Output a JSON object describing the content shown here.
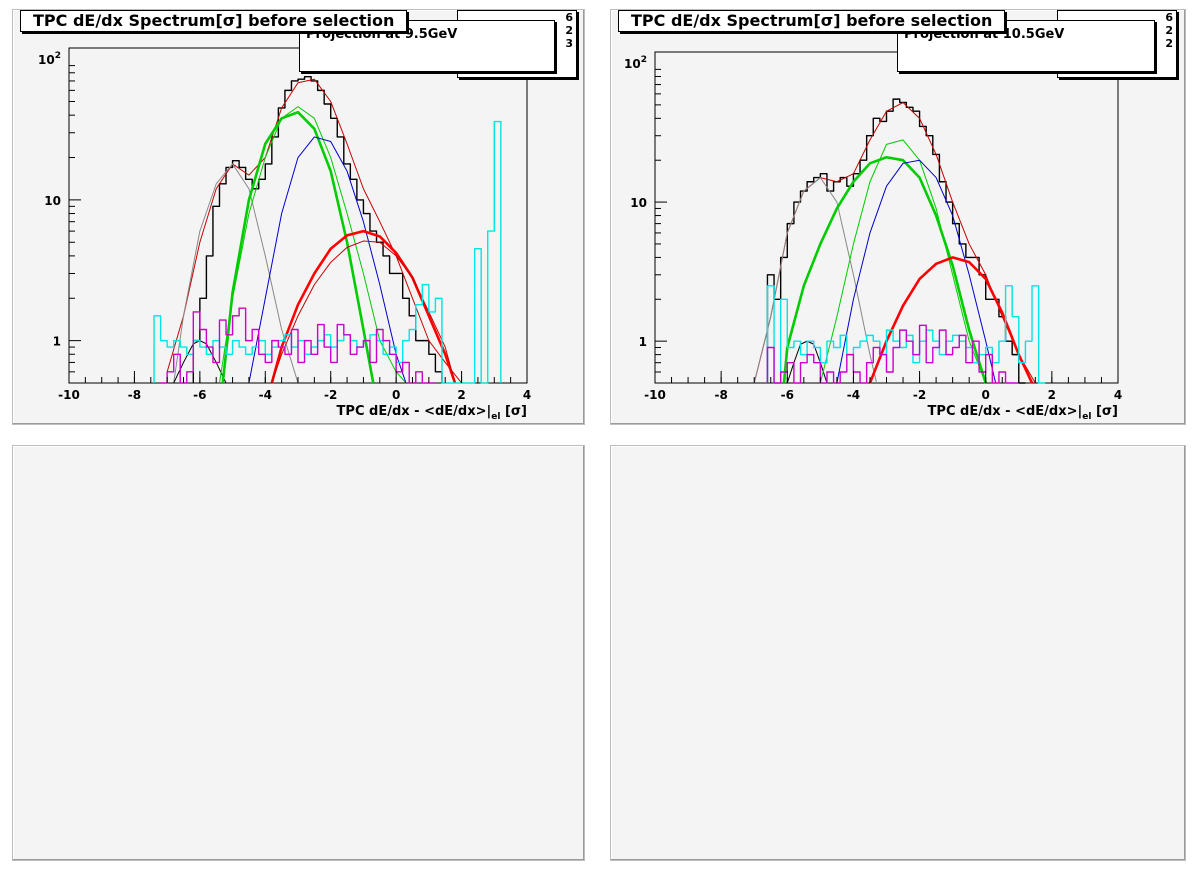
{
  "panels": [
    {
      "title": "TPC dE/dx Spectrum[σ] before selection",
      "projection": "Projection at 9.5GeV",
      "stats": [
        "6",
        "2",
        "3"
      ]
    },
    {
      "title": "TPC dE/dx Spectrum[σ] before selection",
      "projection": "Projection at 10.5GeV",
      "stats": [
        "6",
        "2",
        "2"
      ]
    }
  ],
  "chart_data": [
    {
      "type": "line",
      "title": "TPC dE/dx Spectrum[σ] before selection",
      "subtitle": "Projection at 9.5GeV",
      "xlabel": "TPC dE/dx - <dE/dx>|el [σ]",
      "xticks": [
        "-10",
        "-8",
        "-6",
        "-4",
        "-2",
        "0",
        "2",
        "4"
      ],
      "yticks": [
        "1",
        "10",
        "10^2"
      ],
      "xlim": [
        -10,
        4
      ],
      "ylim": [
        0.5,
        120
      ],
      "yscale": "log",
      "colors": {
        "data": "#000000",
        "total_fit": "#c80000",
        "electron": "#ff0000",
        "pion": "#00cc00",
        "kaon": "#0000cc",
        "proton": "#888888",
        "other": "#00e5e5",
        "residual": "#cc00cc"
      },
      "series": [
        {
          "color": "#000000",
          "style": "step",
          "x": [
            -6.2,
            -6,
            -5.8,
            -5.6,
            -5.4,
            -5.2,
            -5,
            -4.8,
            -4.6,
            -4.4,
            -4.2,
            -4,
            -3.8,
            -3.6,
            -3.4,
            -3.2,
            -3,
            -2.8,
            -2.6,
            -2.4,
            -2.2,
            -2,
            -1.8,
            -1.6,
            -1.4,
            -1.2,
            -1,
            -0.8,
            -0.6,
            -0.4,
            -0.2,
            0,
            0.2,
            0.4,
            0.6,
            0.8,
            1,
            1.2
          ],
          "y": [
            1,
            2,
            4,
            9,
            13,
            17,
            19,
            17,
            14,
            12,
            14,
            18,
            28,
            45,
            60,
            70,
            72,
            75,
            70,
            60,
            48,
            38,
            28,
            18,
            14,
            10,
            8,
            6,
            5,
            4,
            3,
            3,
            2,
            1.5,
            1,
            1,
            0.8,
            0.6
          ]
        },
        {
          "color": "#c80000",
          "style": "smooth",
          "x": [
            -7,
            -6.5,
            -6,
            -5.5,
            -5,
            -4.5,
            -4,
            -3.5,
            -3,
            -2.5,
            -2,
            -1.5,
            -1,
            -0.5,
            0,
            0.5,
            1,
            1.5,
            2
          ],
          "y": [
            0.6,
            1.5,
            5,
            12,
            18,
            15,
            20,
            45,
            68,
            72,
            50,
            25,
            12,
            7,
            4,
            2,
            1,
            0.7,
            0.5
          ]
        },
        {
          "color": "#888888",
          "style": "smooth",
          "x": [
            -6.8,
            -6.5,
            -6,
            -5.5,
            -5,
            -4.5,
            -4,
            -3.5,
            -3
          ],
          "y": [
            0.5,
            1.5,
            6,
            13,
            18,
            12,
            4,
            1.2,
            0.5
          ]
        },
        {
          "color": "#000000",
          "style": "smooth",
          "x": [
            -6.8,
            -6.5,
            -6.2,
            -6,
            -5.8,
            -5.5,
            -5.2
          ],
          "y": [
            0.5,
            0.7,
            0.95,
            1,
            0.95,
            0.7,
            0.5
          ]
        },
        {
          "color": "#00cc00",
          "style": "smooth",
          "x": [
            -5.4,
            -5,
            -4.5,
            -4,
            -3.5,
            -3,
            -2.5,
            -2,
            -1.5,
            -1,
            -0.5,
            0,
            0.3
          ],
          "y": [
            0.5,
            2,
            8,
            20,
            38,
            46,
            38,
            20,
            8,
            3,
            1,
            0.6,
            0.5
          ]
        },
        {
          "color": "#00cc00",
          "style": "thick",
          "x": [
            -5.3,
            -5,
            -4.5,
            -4,
            -3.5,
            -3,
            -2.5,
            -2,
            -1.5,
            -1,
            -0.7
          ],
          "y": [
            0.5,
            2.2,
            10,
            25,
            38,
            42,
            32,
            16,
            5,
            1.2,
            0.5
          ]
        },
        {
          "color": "#0000cc",
          "style": "smooth",
          "x": [
            -4.5,
            -4,
            -3.5,
            -3,
            -2.5,
            -2,
            -1.5,
            -1,
            -0.5,
            0,
            0.3
          ],
          "y": [
            0.5,
            2,
            8,
            20,
            28,
            26,
            16,
            7,
            2.5,
            0.8,
            0.5
          ]
        },
        {
          "color": "#ff0000",
          "style": "thick",
          "x": [
            -3.8,
            -3.5,
            -3,
            -2.5,
            -2,
            -1.5,
            -1,
            -0.5,
            0,
            0.5,
            1,
            1.5,
            1.8
          ],
          "y": [
            0.5,
            0.9,
            1.8,
            3,
            4.5,
            5.6,
            6,
            5.5,
            4.2,
            2.8,
            1.5,
            0.8,
            0.5
          ]
        },
        {
          "color": "#c80000",
          "style": "smooth",
          "x": [
            -3.8,
            -3.5,
            -3,
            -2.5,
            -2,
            -1.5,
            -1,
            -0.5,
            0,
            0.5,
            1,
            1.5,
            1.8
          ],
          "y": [
            0.5,
            0.8,
            1.5,
            2.5,
            3.6,
            4.6,
            5.1,
            5,
            4,
            2.8,
            1.6,
            0.9,
            0.5
          ]
        },
        {
          "color": "#00e5e5",
          "style": "step",
          "x": [
            -7.4,
            -7.2,
            -7,
            -6.8,
            -6.6,
            -6.4,
            -6.2,
            -6,
            -5.8,
            -5.6,
            -5.4,
            -5.2,
            -5,
            -4.8,
            -4.6,
            -4.4,
            -4.2,
            -4,
            -3.8,
            -3.6,
            -3.4,
            -3.2,
            -3,
            -2.8,
            -2.6,
            -2.4,
            -2.2,
            -2,
            -1.8,
            -1.6,
            -1.4,
            -1.2,
            -1,
            -0.8,
            -0.6,
            -0.4,
            -0.2,
            0,
            0.2,
            0.4,
            0.6,
            0.8,
            1,
            1.2,
            1.4,
            1.6,
            1.8,
            2,
            2.2,
            2.4,
            2.6,
            2.8,
            3
          ],
          "y": [
            1.5,
            1,
            0.9,
            1,
            0.9,
            0.8,
            1,
            0.9,
            0.8,
            1,
            0.9,
            0.8,
            1,
            0.9,
            0.8,
            0.9,
            1,
            0.8,
            0.9,
            1,
            1.1,
            0.9,
            1,
            0.8,
            0.9,
            1,
            1.1,
            0.9,
            1,
            1.1,
            1,
            0.9,
            1,
            1.1,
            1,
            0.8,
            0.9,
            0.7,
            1,
            1.2,
            1.8,
            2.5,
            1.6,
            2,
            0.5,
            0.5,
            0.5,
            0.5,
            0.5,
            4.5,
            0.5,
            6,
            36
          ]
        },
        {
          "color": "#cc00cc",
          "style": "step",
          "x": [
            -7.2,
            -7,
            -6.8,
            -6.6,
            -6.4,
            -6.2,
            -6,
            -5.8,
            -5.6,
            -5.4,
            -5.2,
            -5,
            -4.8,
            -4.6,
            -4.4,
            -4.2,
            -4,
            -3.8,
            -3.6,
            -3.4,
            -3.2,
            -3,
            -2.8,
            -2.6,
            -2.4,
            -2.2,
            -2,
            -1.8,
            -1.6,
            -1.4,
            -1.2,
            -1,
            -0.8,
            -0.6,
            -0.4,
            -0.2,
            0,
            0.2,
            0.4,
            0.6,
            0.8,
            1
          ],
          "y": [
            0.5,
            0.6,
            0.8,
            0.5,
            0.6,
            1.6,
            1.2,
            0.9,
            0.7,
            1.4,
            1.1,
            1.5,
            1.7,
            1,
            1.2,
            0.8,
            0.7,
            1,
            0.9,
            0.8,
            1.2,
            0.7,
            1,
            0.8,
            1.3,
            0.9,
            0.7,
            1.3,
            1.1,
            0.8,
            0.9,
            1,
            0.7,
            1.2,
            1,
            0.8,
            0.6,
            0.7,
            0.5,
            0.6,
            0.5,
            0.5
          ]
        }
      ]
    },
    {
      "type": "line",
      "title": "TPC dE/dx Spectrum[σ] before selection",
      "subtitle": "Projection at 10.5GeV",
      "xlabel": "TPC dE/dx - <dE/dx>|el [σ]",
      "xticks": [
        "-10",
        "-8",
        "-6",
        "-4",
        "-2",
        "0",
        "2",
        "4"
      ],
      "yticks": [
        "1",
        "10",
        "10^2"
      ],
      "xlim": [
        -10,
        4
      ],
      "ylim": [
        0.5,
        120
      ],
      "yscale": "log",
      "colors": {
        "data": "#000000",
        "total_fit": "#c80000",
        "electron": "#ff0000",
        "pion": "#00cc00",
        "kaon": "#0000cc",
        "proton": "#888888",
        "other": "#00e5e5",
        "residual": "#cc00cc"
      },
      "series": [
        {
          "color": "#000000",
          "style": "step",
          "x": [
            -6.6,
            -6.4,
            -6.2,
            -6,
            -5.8,
            -5.6,
            -5.4,
            -5.2,
            -5,
            -4.8,
            -4.6,
            -4.4,
            -4.2,
            -4,
            -3.8,
            -3.6,
            -3.4,
            -3.2,
            -3,
            -2.8,
            -2.6,
            -2.4,
            -2.2,
            -2,
            -1.8,
            -1.6,
            -1.4,
            -1.2,
            -1,
            -0.8,
            -0.6,
            -0.4,
            -0.2,
            0,
            0.2,
            0.4,
            0.6,
            0.8,
            1
          ],
          "y": [
            3,
            2,
            4,
            7,
            10,
            12,
            14,
            15,
            16,
            12,
            14,
            15,
            13,
            16,
            20,
            30,
            40,
            38,
            45,
            55,
            52,
            48,
            45,
            35,
            30,
            22,
            14,
            10,
            7,
            5,
            4,
            4,
            3,
            2,
            2,
            1.5,
            1,
            0.8,
            0.5
          ]
        },
        {
          "color": "#c80000",
          "style": "smooth",
          "x": [
            -7,
            -6.5,
            -6,
            -5.5,
            -5,
            -4.5,
            -4,
            -3.5,
            -3,
            -2.5,
            -2,
            -1.5,
            -1,
            -0.5,
            0,
            0.5,
            1,
            1.5
          ],
          "y": [
            0.5,
            1.5,
            6,
            12,
            15,
            14,
            16,
            28,
            45,
            52,
            40,
            22,
            10,
            5,
            3,
            1.5,
            0.8,
            0.5
          ]
        },
        {
          "color": "#888888",
          "style": "smooth",
          "x": [
            -7,
            -6.5,
            -6,
            -5.5,
            -5,
            -4.5,
            -4,
            -3.5,
            -3.3
          ],
          "y": [
            0.5,
            1.5,
            6,
            12,
            15,
            10,
            3,
            0.8,
            0.5
          ]
        },
        {
          "color": "#000000",
          "style": "smooth",
          "x": [
            -6,
            -5.8,
            -5.6,
            -5.4,
            -5.2,
            -5,
            -4.8
          ],
          "y": [
            0.5,
            0.7,
            0.95,
            1,
            0.95,
            0.7,
            0.5
          ]
        },
        {
          "color": "#00cc00",
          "style": "thick",
          "x": [
            -6.1,
            -6,
            -5.5,
            -5,
            -4.5,
            -4,
            -3.5,
            -3,
            -2.5,
            -2,
            -1.5,
            -1,
            -0.5,
            0
          ],
          "y": [
            0.5,
            0.9,
            2.5,
            5,
            9,
            14,
            19,
            21,
            20,
            15,
            8,
            3.5,
            1.2,
            0.5
          ]
        },
        {
          "color": "#00cc00",
          "style": "smooth",
          "x": [
            -5,
            -4.5,
            -4,
            -3.5,
            -3,
            -2.5,
            -2,
            -1.5,
            -1,
            -0.5,
            0
          ],
          "y": [
            0.5,
            1.5,
            5,
            14,
            26,
            28,
            20,
            9,
            3,
            1,
            0.5
          ]
        },
        {
          "color": "#0000cc",
          "style": "smooth",
          "x": [
            -4.5,
            -4,
            -3.5,
            -3,
            -2.5,
            -2,
            -1.5,
            -1,
            -0.5,
            0,
            0.3
          ],
          "y": [
            0.5,
            2,
            6,
            13,
            19,
            20,
            15,
            8,
            3,
            1,
            0.5
          ]
        },
        {
          "color": "#ff0000",
          "style": "thick",
          "x": [
            -3.5,
            -3,
            -2.5,
            -2,
            -1.5,
            -1,
            -0.5,
            0,
            0.5,
            1,
            1.4
          ],
          "y": [
            0.5,
            1,
            1.8,
            2.8,
            3.6,
            4,
            3.7,
            2.8,
            1.6,
            0.8,
            0.5
          ]
        },
        {
          "color": "#00e5e5",
          "style": "step",
          "x": [
            -6.6,
            -6.4,
            -6.2,
            -6,
            -5.8,
            -5.6,
            -5.4,
            -5.2,
            -5,
            -4.8,
            -4.6,
            -4.4,
            -4.2,
            -4,
            -3.8,
            -3.6,
            -3.4,
            -3.2,
            -3,
            -2.8,
            -2.6,
            -2.4,
            -2.2,
            -2,
            -1.8,
            -1.6,
            -1.4,
            -1.2,
            -1,
            -0.8,
            -0.6,
            -0.4,
            -0.2,
            0,
            0.2,
            0.4,
            0.6,
            0.8,
            1,
            1.2,
            1.4,
            1.6
          ],
          "y": [
            2.5,
            0.5,
            2,
            0.9,
            1,
            0.8,
            1,
            0.9,
            0.7,
            1,
            0.9,
            1.1,
            0.8,
            0.9,
            1,
            1.1,
            1,
            0.8,
            1.2,
            1,
            0.9,
            1.1,
            0.7,
            1,
            1.2,
            1,
            0.8,
            1,
            1.1,
            1,
            0.9,
            0.7,
            0.8,
            0.9,
            0.7,
            1,
            2.5,
            1.5,
            0.7,
            1,
            2.5,
            0.5
          ]
        },
        {
          "color": "#cc00cc",
          "style": "step",
          "x": [
            -6.6,
            -6.4,
            -6.2,
            -6,
            -5.8,
            -5.6,
            -5.4,
            -5.2,
            -5,
            -4.8,
            -4.6,
            -4.4,
            -4.2,
            -4,
            -3.8,
            -3.6,
            -3.4,
            -3.2,
            -3,
            -2.8,
            -2.6,
            -2.4,
            -2.2,
            -2,
            -1.8,
            -1.6,
            -1.4,
            -1.2,
            -1,
            -0.8,
            -0.6,
            -0.4,
            -0.2,
            0,
            0.2,
            0.4,
            0.6,
            0.8
          ],
          "y": [
            0.9,
            0.5,
            0.6,
            0.7,
            0.5,
            0.7,
            0.8,
            0.7,
            0.5,
            0.6,
            0.5,
            0.6,
            0.8,
            0.6,
            0.5,
            0.7,
            0.9,
            0.8,
            0.6,
            0.9,
            1.2,
            1,
            0.8,
            1.3,
            0.7,
            0.9,
            1.2,
            0.8,
            0.9,
            1.1,
            0.7,
            1,
            0.6,
            0.8,
            0.5,
            0.6,
            0.5,
            0.5
          ]
        }
      ]
    }
  ]
}
